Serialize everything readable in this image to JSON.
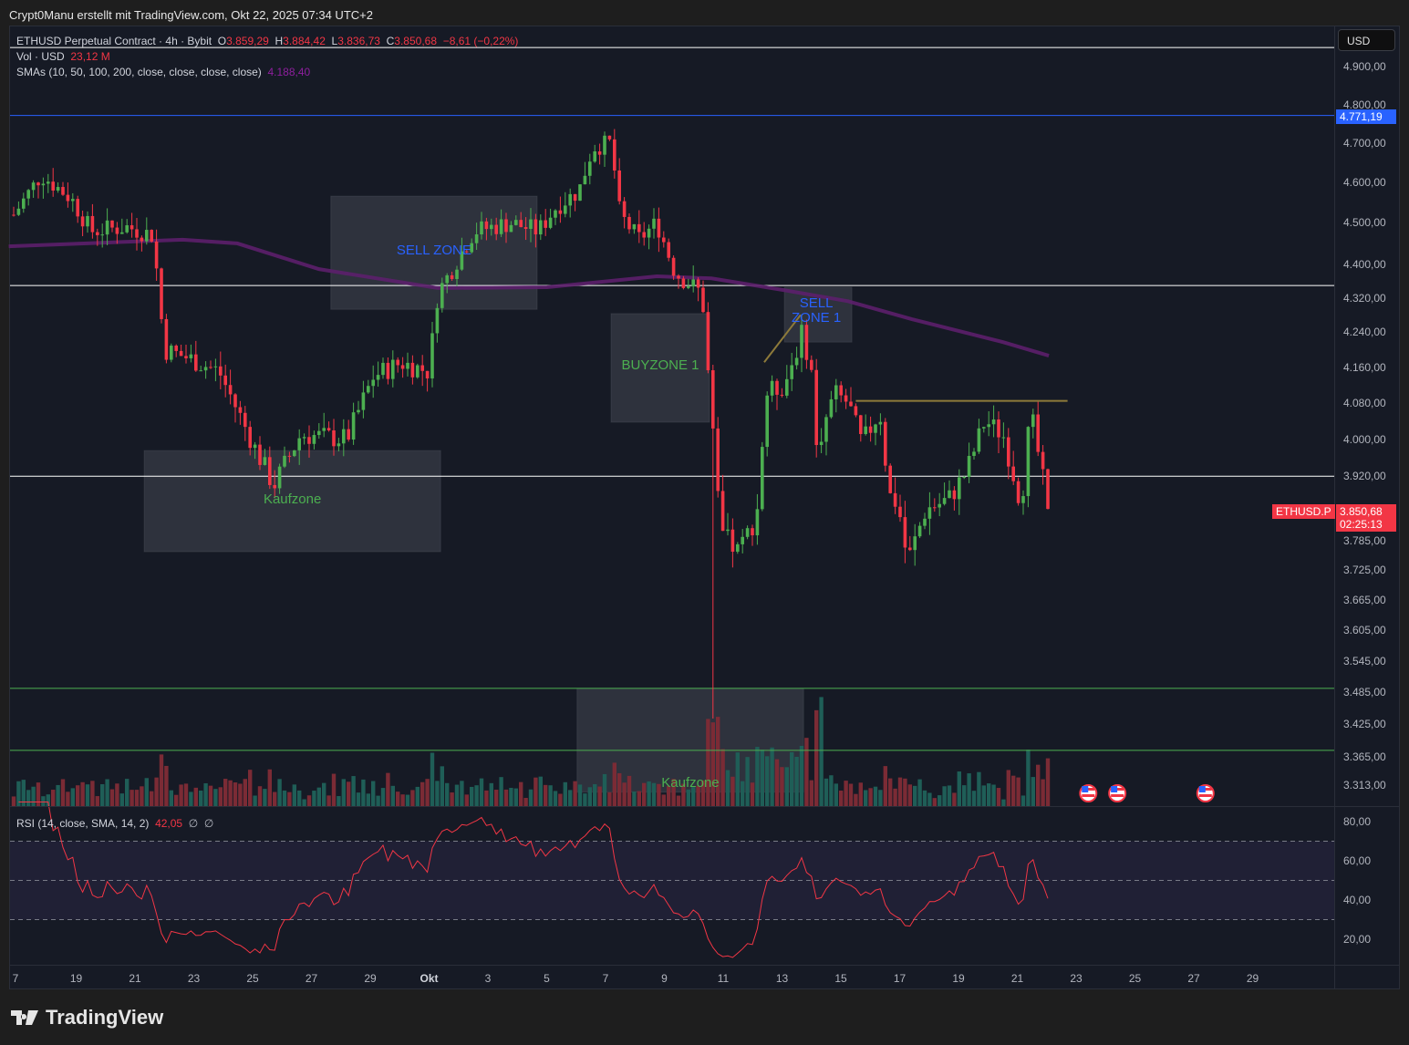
{
  "credit": "Crypt0Manu erstellt mit TradingView.com, Okt 22, 2025 07:34 UTC+2",
  "legend": {
    "symbol": "ETHUSD Perpetual Contract · 4h · Bybit",
    "o_label": "O",
    "o": "3.859,29",
    "h_label": "H",
    "h": "3.884,42",
    "l_label": "L",
    "l": "3.836,73",
    "c_label": "C",
    "c": "3.850,68",
    "change": "−8,61 (−0,22%)",
    "vol_label": "Vol · USD",
    "vol": "23,12 M",
    "sma_label": "SMAs (10, 50, 100, 200, close, close, close, close)",
    "sma": "4.188,40"
  },
  "currency_button": "USD",
  "price_axis_ticks": [
    "4.900,00",
    "4.800,00",
    "4.700,00",
    "4.600,00",
    "4.500,00",
    "4.400,00",
    "4.320,00",
    "4.240,00",
    "4.160,00",
    "4.080,00",
    "4.000,00",
    "3.920,00",
    "3.785,00",
    "3.725,00",
    "3.665,00",
    "3.605,00",
    "3.545,00",
    "3.485,00",
    "3.425,00",
    "3.365,00",
    "3.313,00"
  ],
  "price_axis_values": [
    4900,
    4800,
    4700,
    4600,
    4500,
    4400,
    4320,
    4240,
    4160,
    4080,
    4000,
    3920,
    3785,
    3725,
    3665,
    3605,
    3545,
    3485,
    3425,
    3365,
    3313
  ],
  "blue_line_label": "4.771,19",
  "blue_line_price": 4771.19,
  "current": {
    "symbol_tag": "ETHUSD.P",
    "price": "3.850,68",
    "countdown": "02:25:13",
    "value": 3850.68
  },
  "rsi": {
    "label": "RSI (14, close, SMA, 14, 2)",
    "value": "42,05",
    "extra1": "∅",
    "extra2": "∅",
    "ticks": [
      "80,00",
      "60,00",
      "40,00",
      "20,00"
    ],
    "tick_values": [
      80,
      60,
      40,
      20
    ],
    "bands": [
      70,
      50,
      30
    ]
  },
  "time_axis": [
    "7",
    "19",
    "21",
    "23",
    "25",
    "27",
    "29",
    "Okt",
    "3",
    "5",
    "7",
    "9",
    "11",
    "13",
    "15",
    "17",
    "19",
    "21",
    "23",
    "25",
    "27",
    "29"
  ],
  "chart_data": {
    "type": "candlestick",
    "interval": "4h",
    "price_waypoints": [
      [
        0,
        4520
      ],
      [
        5.6,
        4620
      ],
      [
        11.7,
        4560
      ],
      [
        15.7,
        4480
      ],
      [
        23.1,
        4490
      ],
      [
        28.3,
        4470
      ],
      [
        30.6,
        4200
      ],
      [
        35.6,
        4180
      ],
      [
        41.7,
        4150
      ],
      [
        49,
        3980
      ],
      [
        52.8,
        3900
      ],
      [
        58.3,
        4010
      ],
      [
        67.6,
        4000
      ],
      [
        73.1,
        4140
      ],
      [
        78.7,
        4170
      ],
      [
        84.3,
        4150
      ],
      [
        86.1,
        4330
      ],
      [
        93.5,
        4480
      ],
      [
        100.9,
        4500
      ],
      [
        106.5,
        4480
      ],
      [
        110.2,
        4540
      ],
      [
        114.8,
        4580
      ],
      [
        117.6,
        4690
      ],
      [
        121.3,
        4700
      ],
      [
        123.1,
        4520
      ],
      [
        126.9,
        4460
      ],
      [
        130.6,
        4500
      ],
      [
        134.3,
        4380
      ],
      [
        139.8,
        4330
      ],
      [
        141.3,
        4100
      ],
      [
        143.5,
        3800
      ],
      [
        147.2,
        3760
      ],
      [
        150.9,
        3840
      ],
      [
        152.8,
        4100
      ],
      [
        156.5,
        4120
      ],
      [
        160.2,
        4240
      ],
      [
        162,
        4150
      ],
      [
        163,
        3980
      ],
      [
        166.7,
        4100
      ],
      [
        169.4,
        4080
      ],
      [
        172.2,
        3990
      ],
      [
        175.9,
        4060
      ],
      [
        177.8,
        3880
      ],
      [
        179.6,
        3860
      ],
      [
        181.5,
        3740
      ],
      [
        185.2,
        3850
      ],
      [
        189.8,
        3870
      ],
      [
        193.5,
        3930
      ],
      [
        197.2,
        4040
      ],
      [
        200.9,
        4010
      ],
      [
        204.6,
        3860
      ],
      [
        206.5,
        4060
      ],
      [
        210,
        3850.68
      ]
    ],
    "candle_count": 211,
    "flash_crash": {
      "candle": 142,
      "low": 3435
    },
    "sma200": [
      [
        -1,
        4443
      ],
      [
        34.3,
        4459
      ],
      [
        45.4,
        4450
      ],
      [
        62,
        4388
      ],
      [
        86.1,
        4343
      ],
      [
        108.3,
        4345
      ],
      [
        130.6,
        4371
      ],
      [
        141.7,
        4366
      ],
      [
        156.5,
        4338
      ],
      [
        169.4,
        4312
      ],
      [
        182.4,
        4270
      ],
      [
        200.9,
        4217
      ],
      [
        210.2,
        4186
      ]
    ],
    "horizontal_lines": [
      {
        "price": 4951,
        "color": "#ffffff"
      },
      {
        "price": 4771.19,
        "color": "#2962ff"
      },
      {
        "price": 4349,
        "color": "#ffffff"
      },
      {
        "price": 3920,
        "color": "#ffffff"
      },
      {
        "price": 3492,
        "color": "#4caf50"
      },
      {
        "price": 3376,
        "color": "#4caf50"
      }
    ],
    "trend_lines": [
      {
        "from": [
          171,
          4084
        ],
        "to": [
          214,
          4084
        ],
        "color": "#8d7a3a"
      },
      {
        "from": [
          152.4,
          4171
        ],
        "to": [
          159.8,
          4280
        ],
        "color": "#8d7a3a"
      }
    ],
    "zones": [
      {
        "label": "Kaufzone",
        "from": 26.5,
        "to": 86.7,
        "top": 3975,
        "bottom": 3762,
        "text_color": "#4caf50"
      },
      {
        "label": "SELL ZONE",
        "from": 64.4,
        "to": 106.3,
        "top": 4566,
        "bottom": 4293,
        "text_color": "#2962ff"
      },
      {
        "label": "BUYZONE 1",
        "from": 121.3,
        "to": 141.3,
        "top": 4283,
        "bottom": 4037,
        "text_color": "#4caf50"
      },
      {
        "label": "SELL ZONE 1",
        "from": 156.5,
        "to": 170.2,
        "top": 4345,
        "bottom": 4217,
        "text_color": "#2962ff"
      },
      {
        "label": "Kaufzone",
        "from": 114.4,
        "to": 160.4,
        "top": 3492,
        "bottom": 3300,
        "text_color": "#4caf50"
      }
    ],
    "events": [
      218.2,
      224.1,
      242
    ]
  },
  "colors": {
    "up": "#4caf50",
    "down": "#f23645",
    "vol_up": "#1f5e57",
    "vol_down": "#7b2b35",
    "sma": "#5c1f6b",
    "rsi": "#f23645"
  },
  "brand": "TradingView"
}
